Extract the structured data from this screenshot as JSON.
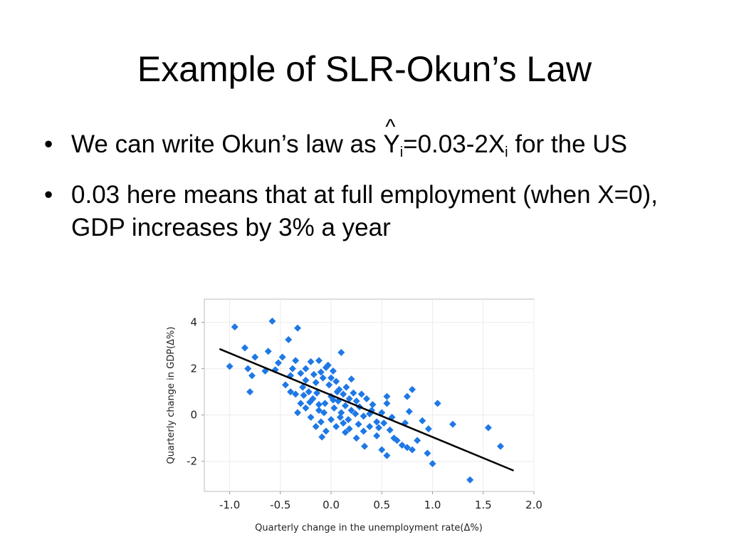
{
  "slide": {
    "title": "Example of SLR-Okun’s Law",
    "bullet_glyph": "•",
    "bullet1": {
      "before": "We can write Okun’s law as ",
      "y": "Y",
      "hat": "^",
      "sub1": "i",
      "mid": "=0.03-2X",
      "sub2": "i",
      "after": " for the US"
    },
    "bullet2": "0.03 here means that at full employment (when X=0), GDP increases by 3% a year"
  },
  "chart_data": {
    "type": "scatter",
    "xlabel": "Quarterly change in the unemployment rate(Δ%)",
    "ylabel": "Quarterly change in GDP(Δ%)",
    "xlim": [
      -1.25,
      2.0
    ],
    "ylim": [
      -3.3,
      5.0
    ],
    "xticks": [
      "-1.0",
      "-0.5",
      "0.0",
      "0.5",
      "1.0",
      "1.5",
      "2.0"
    ],
    "xtick_values": [
      -1.0,
      -0.5,
      0.0,
      0.5,
      1.0,
      1.5,
      2.0
    ],
    "yticks": [
      "4",
      "2",
      "0",
      "-2"
    ],
    "ytick_values": [
      4,
      2,
      0,
      -2
    ],
    "marker_color": "#1e78e6",
    "line_color": "#000000",
    "grid": true,
    "fit_line": [
      [
        -1.1,
        2.85
      ],
      [
        1.8,
        -2.4
      ]
    ],
    "points": [
      [
        -0.95,
        3.8
      ],
      [
        -0.58,
        4.05
      ],
      [
        -0.33,
        3.75
      ],
      [
        -0.42,
        3.25
      ],
      [
        -0.85,
        2.9
      ],
      [
        -0.62,
        2.75
      ],
      [
        -0.48,
        2.5
      ],
      [
        -0.75,
        2.5
      ],
      [
        -0.35,
        2.35
      ],
      [
        0.1,
        2.7
      ],
      [
        -1.0,
        2.1
      ],
      [
        -0.82,
        2.0
      ],
      [
        -0.78,
        1.7
      ],
      [
        -0.8,
        1.0
      ],
      [
        -0.65,
        1.9
      ],
      [
        -0.55,
        1.95
      ],
      [
        -0.52,
        2.25
      ],
      [
        -0.38,
        2.0
      ],
      [
        -0.3,
        1.8
      ],
      [
        -0.25,
        1.5
      ],
      [
        -0.2,
        2.3
      ],
      [
        -0.12,
        2.35
      ],
      [
        -0.05,
        2.05
      ],
      [
        0.02,
        1.9
      ],
      [
        -0.28,
        1.2
      ],
      [
        -0.22,
        1.0
      ],
      [
        -0.15,
        1.4
      ],
      [
        -0.08,
        1.6
      ],
      [
        -0.02,
        1.3
      ],
      [
        0.05,
        1.45
      ],
      [
        0.08,
        1.1
      ],
      [
        0.12,
        0.9
      ],
      [
        0.15,
        1.2
      ],
      [
        0.18,
        0.7
      ],
      [
        0.22,
        0.95
      ],
      [
        0.25,
        0.6
      ],
      [
        -0.35,
        0.9
      ],
      [
        -0.3,
        0.5
      ],
      [
        -0.25,
        0.3
      ],
      [
        -0.18,
        0.7
      ],
      [
        -0.12,
        0.2
      ],
      [
        -0.06,
        0.5
      ],
      [
        0.0,
        0.8
      ],
      [
        0.03,
        0.3
      ],
      [
        0.07,
        0.6
      ],
      [
        0.1,
        0.1
      ],
      [
        0.14,
        0.4
      ],
      [
        0.2,
        0.2
      ],
      [
        0.28,
        0.35
      ],
      [
        0.32,
        -0.05
      ],
      [
        0.35,
        0.7
      ],
      [
        0.4,
        0.2
      ],
      [
        0.45,
        -0.3
      ],
      [
        0.5,
        0.1
      ],
      [
        0.55,
        0.5
      ],
      [
        0.6,
        -0.1
      ],
      [
        -0.2,
        -0.1
      ],
      [
        -0.15,
        -0.5
      ],
      [
        -0.1,
        -0.3
      ],
      [
        -0.05,
        -0.7
      ],
      [
        0.0,
        -0.2
      ],
      [
        0.05,
        -0.5
      ],
      [
        0.12,
        -0.35
      ],
      [
        0.18,
        -0.6
      ],
      [
        0.25,
        -1.0
      ],
      [
        0.32,
        -0.7
      ],
      [
        0.38,
        -0.5
      ],
      [
        0.45,
        -0.9
      ],
      [
        0.52,
        -0.35
      ],
      [
        0.58,
        -0.65
      ],
      [
        0.65,
        -1.1
      ],
      [
        0.7,
        -1.3
      ],
      [
        0.75,
        -1.4
      ],
      [
        0.5,
        -1.5
      ],
      [
        0.55,
        -1.75
      ],
      [
        0.62,
        -1.0
      ],
      [
        0.8,
        -1.5
      ],
      [
        0.85,
        -1.1
      ],
      [
        0.95,
        -1.65
      ],
      [
        0.9,
        -0.25
      ],
      [
        0.73,
        -0.35
      ],
      [
        0.77,
        0.15
      ],
      [
        0.96,
        -0.6
      ],
      [
        0.8,
        1.1
      ],
      [
        0.75,
        0.8
      ],
      [
        1.05,
        0.5
      ],
      [
        1.2,
        -0.4
      ],
      [
        1.0,
        -2.1
      ],
      [
        1.55,
        -0.55
      ],
      [
        1.67,
        -1.35
      ],
      [
        1.37,
        -2.8
      ],
      [
        0.55,
        0.8
      ],
      [
        0.3,
        0.9
      ],
      [
        -0.4,
        1.0
      ],
      [
        -0.45,
        1.3
      ],
      [
        -0.4,
        1.7
      ],
      [
        -0.25,
        2.0
      ],
      [
        -0.1,
        1.85
      ],
      [
        0.0,
        1.6
      ],
      [
        0.06,
        1.0
      ],
      [
        -0.14,
        0.95
      ],
      [
        -0.33,
        0.1
      ],
      [
        -0.21,
        0.55
      ],
      [
        -0.07,
        0.1
      ],
      [
        0.17,
        -0.2
      ],
      [
        0.24,
        0.05
      ],
      [
        0.41,
        0.45
      ],
      [
        0.47,
        -0.55
      ],
      [
        0.33,
        -1.35
      ],
      [
        0.2,
        1.55
      ],
      [
        -0.03,
        2.15
      ],
      [
        -0.17,
        1.75
      ],
      [
        -0.27,
        0.85
      ],
      [
        0.09,
        -0.1
      ],
      [
        0.27,
        -0.4
      ],
      [
        -0.09,
        -0.95
      ],
      [
        0.14,
        -0.75
      ],
      [
        0.38,
        0.05
      ],
      [
        -0.12,
        0.45
      ],
      [
        0.02,
        0.65
      ]
    ]
  }
}
